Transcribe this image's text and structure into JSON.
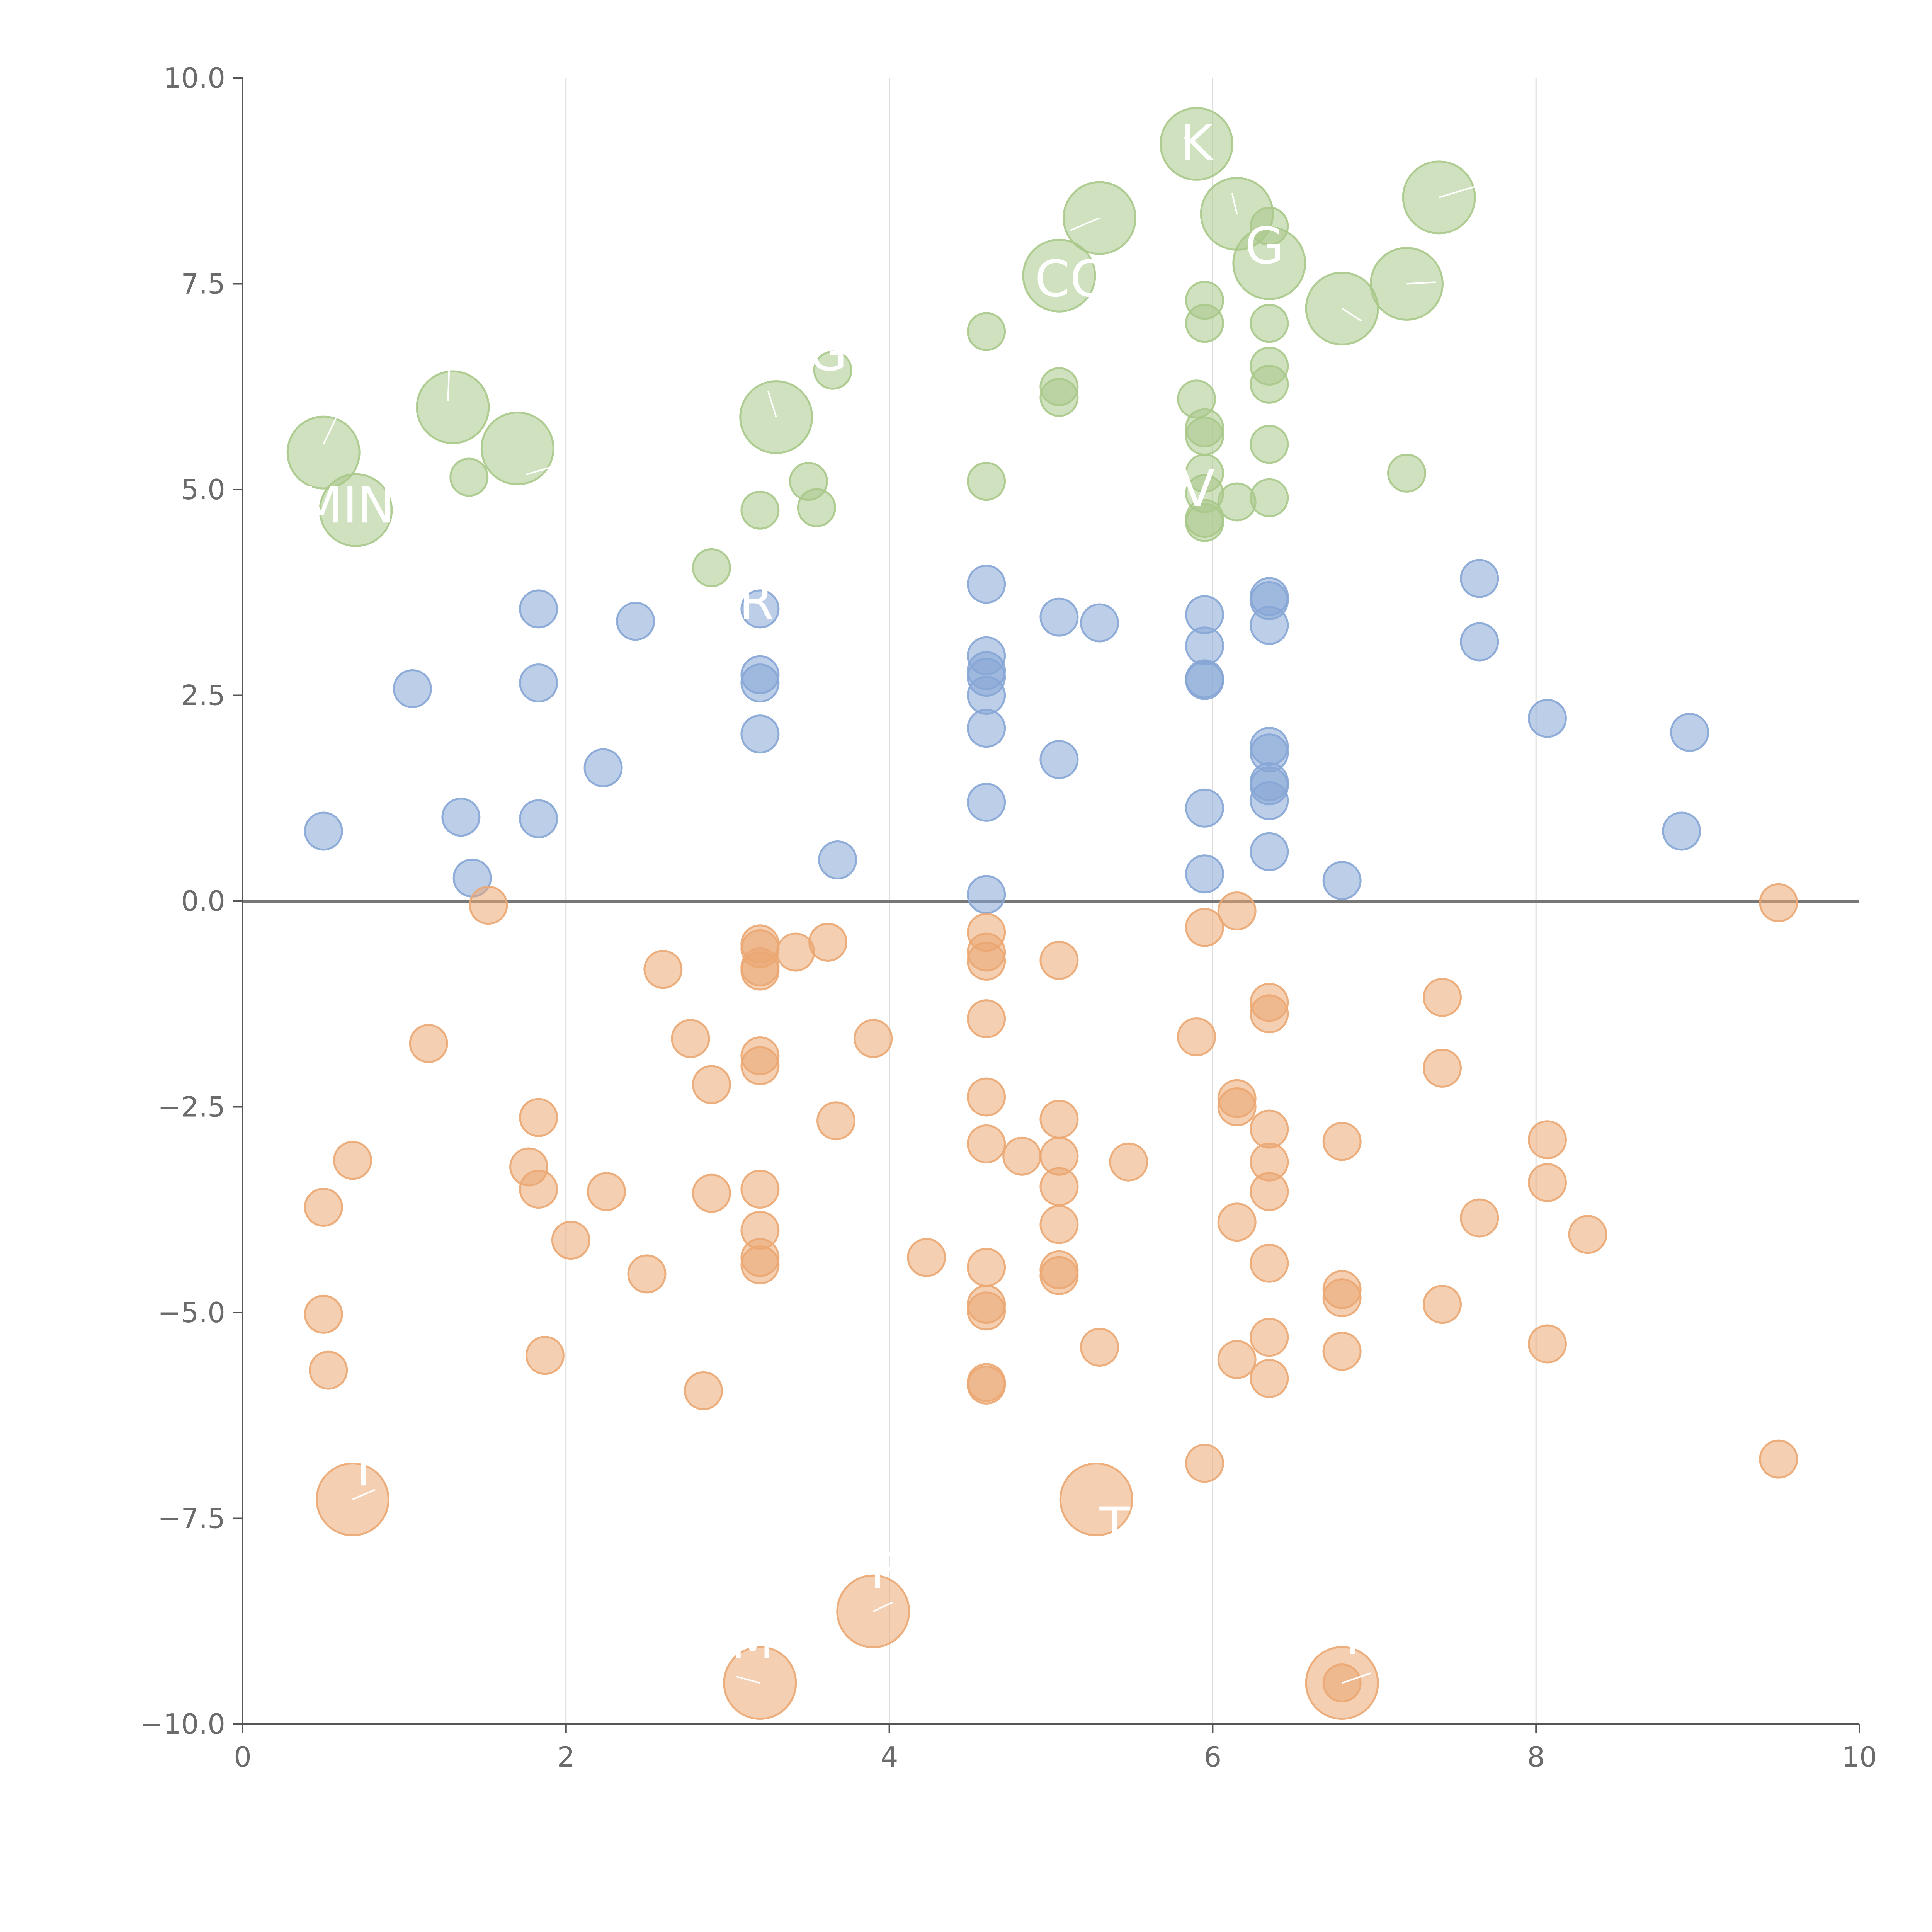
{
  "chart_data": {
    "type": "scatter",
    "title": "",
    "xlabel": "",
    "ylabel": "",
    "xlim": [
      0,
      10
    ],
    "ylim": [
      -10,
      10
    ],
    "x_ticks": [
      0,
      2,
      4,
      6,
      8,
      10
    ],
    "x_tick_labels": [
      "0",
      "2",
      "4",
      "6",
      "8",
      "10"
    ],
    "y_ticks": [
      -10,
      -7.5,
      -5,
      -2.5,
      0,
      2.5,
      5,
      7.5,
      10
    ],
    "y_tick_labels": [
      "−10.0",
      "−7.5",
      "−5.0",
      "−2.5",
      "0.0",
      "2.5",
      "5.0",
      "7.5",
      "10.0"
    ],
    "grid": "vertical",
    "zero_line": true,
    "colors": {
      "green": "#a9c98a",
      "blue": "#86a6d6",
      "orange": "#eba772",
      "axis": "#555555",
      "grid": "#dddddd",
      "zero_line": "#777777",
      "label": "#ffffff"
    },
    "series": [
      {
        "name": "green",
        "color": "#a9c98a",
        "opacity": 0.55,
        "points": [
          [
            0.5,
            5.45,
            2
          ],
          [
            0.7,
            4.75,
            2
          ],
          [
            1.3,
            6.0,
            2
          ],
          [
            1.7,
            5.5,
            2
          ],
          [
            1.4,
            5.15,
            1
          ],
          [
            3.3,
            5.88,
            2
          ],
          [
            3.65,
            6.45,
            1
          ],
          [
            3.5,
            5.1,
            1
          ],
          [
            3.2,
            4.75,
            1
          ],
          [
            3.55,
            4.78,
            1
          ],
          [
            2.9,
            4.05,
            1
          ],
          [
            4.6,
            6.92,
            1
          ],
          [
            4.6,
            5.1,
            1
          ],
          [
            5.05,
            7.6,
            2
          ],
          [
            5.3,
            8.3,
            2
          ],
          [
            5.05,
            6.25,
            1
          ],
          [
            5.05,
            6.12,
            1
          ],
          [
            5.9,
            9.2,
            2
          ],
          [
            6.15,
            8.35,
            2
          ],
          [
            6.35,
            8.2,
            1
          ],
          [
            6.35,
            7.75,
            2
          ],
          [
            6.8,
            7.2,
            2
          ],
          [
            7.2,
            7.5,
            2
          ],
          [
            7.4,
            8.55,
            2
          ],
          [
            5.95,
            7.3,
            1
          ],
          [
            5.95,
            7.02,
            1
          ],
          [
            5.9,
            6.1,
            1
          ],
          [
            5.95,
            5.75,
            1
          ],
          [
            5.95,
            5.65,
            1
          ],
          [
            5.95,
            5.2,
            1
          ],
          [
            5.95,
            4.95,
            1
          ],
          [
            5.95,
            4.65,
            1
          ],
          [
            5.95,
            4.6,
            1
          ],
          [
            6.15,
            4.85,
            1
          ],
          [
            6.35,
            7.02,
            1
          ],
          [
            6.35,
            6.5,
            1
          ],
          [
            6.35,
            6.28,
            1
          ],
          [
            6.35,
            5.55,
            1
          ],
          [
            6.35,
            4.9,
            1
          ],
          [
            7.2,
            5.2,
            1
          ]
        ]
      },
      {
        "name": "blue",
        "color": "#86a6d6",
        "opacity": 0.55,
        "points": [
          [
            0.5,
            0.85,
            1
          ],
          [
            1.05,
            2.58,
            1
          ],
          [
            1.35,
            1.02,
            1
          ],
          [
            1.42,
            0.28,
            1
          ],
          [
            1.83,
            3.55,
            1
          ],
          [
            1.83,
            2.65,
            1
          ],
          [
            1.83,
            1.0,
            1
          ],
          [
            2.23,
            1.62,
            1
          ],
          [
            2.43,
            3.4,
            1
          ],
          [
            3.2,
            3.55,
            1
          ],
          [
            3.2,
            2.75,
            1
          ],
          [
            3.2,
            2.65,
            1
          ],
          [
            3.2,
            2.03,
            1
          ],
          [
            3.68,
            0.5,
            1
          ],
          [
            4.6,
            3.85,
            1
          ],
          [
            4.6,
            2.98,
            1
          ],
          [
            4.6,
            2.8,
            1
          ],
          [
            4.6,
            2.72,
            1
          ],
          [
            4.6,
            2.5,
            1
          ],
          [
            4.6,
            2.1,
            1
          ],
          [
            4.6,
            1.2,
            1
          ],
          [
            4.6,
            0.08,
            1
          ],
          [
            5.05,
            3.45,
            1
          ],
          [
            5.05,
            1.72,
            1
          ],
          [
            5.3,
            3.38,
            1
          ],
          [
            5.95,
            3.48,
            1
          ],
          [
            5.95,
            3.1,
            1
          ],
          [
            5.95,
            2.7,
            1
          ],
          [
            5.95,
            2.68,
            1
          ],
          [
            5.95,
            1.13,
            1
          ],
          [
            5.95,
            0.33,
            1
          ],
          [
            6.35,
            3.7,
            1
          ],
          [
            6.35,
            3.65,
            1
          ],
          [
            6.35,
            3.35,
            1
          ],
          [
            6.35,
            1.88,
            1
          ],
          [
            6.35,
            1.8,
            1
          ],
          [
            6.35,
            1.45,
            1
          ],
          [
            6.35,
            1.4,
            1
          ],
          [
            6.35,
            1.22,
            1
          ],
          [
            6.35,
            0.6,
            1
          ],
          [
            6.8,
            0.25,
            1
          ],
          [
            7.65,
            3.92,
            1
          ],
          [
            7.65,
            3.15,
            1
          ],
          [
            8.07,
            2.22,
            1
          ],
          [
            8.95,
            2.05,
            1
          ],
          [
            8.9,
            0.85,
            1
          ]
        ]
      },
      {
        "name": "orange",
        "color": "#eba772",
        "opacity": 0.55,
        "points": [
          [
            1.52,
            -0.05,
            1
          ],
          [
            9.5,
            -0.02,
            1
          ],
          [
            2.6,
            -0.83,
            1
          ],
          [
            3.2,
            -0.52,
            1
          ],
          [
            3.2,
            -0.58,
            1
          ],
          [
            3.2,
            -0.8,
            1
          ],
          [
            3.2,
            -0.85,
            1
          ],
          [
            3.42,
            -0.62,
            1
          ],
          [
            3.62,
            -0.5,
            1
          ],
          [
            4.6,
            -0.38,
            1
          ],
          [
            4.6,
            -0.62,
            1
          ],
          [
            4.6,
            -0.73,
            1
          ],
          [
            5.05,
            -0.72,
            1
          ],
          [
            5.95,
            -0.32,
            1
          ],
          [
            6.15,
            -0.12,
            1
          ],
          [
            1.15,
            -1.73,
            1
          ],
          [
            2.77,
            -1.67,
            1
          ],
          [
            3.2,
            -1.88,
            1
          ],
          [
            3.2,
            -2.0,
            1
          ],
          [
            3.9,
            -1.67,
            1
          ],
          [
            4.6,
            -1.43,
            1
          ],
          [
            5.9,
            -1.65,
            1
          ],
          [
            6.35,
            -1.23,
            1
          ],
          [
            6.35,
            -1.37,
            1
          ],
          [
            7.42,
            -1.17,
            1
          ],
          [
            7.42,
            -2.03,
            1
          ],
          [
            0.68,
            -3.15,
            1
          ],
          [
            1.83,
            -2.63,
            1
          ],
          [
            1.77,
            -3.23,
            1
          ],
          [
            1.83,
            -3.5,
            1
          ],
          [
            2.9,
            -2.23,
            1
          ],
          [
            3.67,
            -2.67,
            1
          ],
          [
            4.6,
            -2.38,
            1
          ],
          [
            4.6,
            -2.95,
            1
          ],
          [
            4.82,
            -3.1,
            1
          ],
          [
            5.05,
            -2.65,
            1
          ],
          [
            5.05,
            -3.1,
            1
          ],
          [
            5.48,
            -3.17,
            1
          ],
          [
            6.15,
            -2.4,
            1
          ],
          [
            6.15,
            -2.5,
            1
          ],
          [
            6.35,
            -2.77,
            1
          ],
          [
            6.35,
            -3.17,
            1
          ],
          [
            6.8,
            -2.92,
            1
          ],
          [
            8.07,
            -2.9,
            1
          ],
          [
            0.5,
            -3.72,
            1
          ],
          [
            2.03,
            -4.12,
            1
          ],
          [
            2.25,
            -3.53,
            1
          ],
          [
            2.9,
            -3.55,
            1
          ],
          [
            3.2,
            -3.5,
            1
          ],
          [
            3.2,
            -4.0,
            1
          ],
          [
            3.2,
            -4.33,
            1
          ],
          [
            3.2,
            -4.42,
            1
          ],
          [
            4.23,
            -4.33,
            1
          ],
          [
            5.05,
            -3.47,
            1
          ],
          [
            5.05,
            -3.93,
            1
          ],
          [
            6.15,
            -3.9,
            1
          ],
          [
            6.35,
            -3.53,
            1
          ],
          [
            6.35,
            -4.4,
            1
          ],
          [
            7.65,
            -3.85,
            1
          ],
          [
            8.07,
            -3.42,
            1
          ],
          [
            8.32,
            -4.05,
            1
          ],
          [
            0.5,
            -5.02,
            1
          ],
          [
            0.53,
            -5.7,
            1
          ],
          [
            1.87,
            -5.52,
            1
          ],
          [
            2.5,
            -4.53,
            1
          ],
          [
            2.85,
            -5.95,
            1
          ],
          [
            4.6,
            -4.45,
            1
          ],
          [
            4.6,
            -4.9,
            1
          ],
          [
            4.6,
            -4.98,
            1
          ],
          [
            4.6,
            -5.85,
            1
          ],
          [
            4.6,
            -5.88,
            1
          ],
          [
            5.05,
            -4.48,
            1
          ],
          [
            5.05,
            -4.55,
            1
          ],
          [
            5.3,
            -5.42,
            1
          ],
          [
            6.15,
            -5.57,
            1
          ],
          [
            6.35,
            -5.3,
            1
          ],
          [
            6.35,
            -5.8,
            1
          ],
          [
            6.8,
            -4.72,
            1
          ],
          [
            6.8,
            -4.82,
            1
          ],
          [
            6.8,
            -5.47,
            1
          ],
          [
            7.42,
            -4.9,
            1
          ],
          [
            8.07,
            -5.38,
            1
          ],
          [
            5.95,
            -6.83,
            1
          ],
          [
            9.5,
            -6.78,
            1
          ],
          [
            0.68,
            -7.27,
            2
          ],
          [
            5.28,
            -7.27,
            2
          ],
          [
            3.9,
            -8.63,
            2
          ],
          [
            3.2,
            -9.5,
            2
          ],
          [
            6.8,
            -9.5,
            2
          ],
          [
            6.8,
            -9.5,
            1
          ]
        ]
      }
    ],
    "annotations": [
      {
        "text": "K",
        "x": 5.8,
        "y": 9.0
      },
      {
        "text": "G",
        "x": 6.2,
        "y": 7.75
      },
      {
        "text": "CO",
        "x": 4.9,
        "y": 7.35
      },
      {
        "text": "G",
        "x": 3.5,
        "y": 6.45
      },
      {
        "text": "MIN",
        "x": 0.35,
        "y": 4.6
      },
      {
        "text": "V",
        "x": 5.8,
        "y": 4.8
      },
      {
        "text": "R",
        "x": 3.07,
        "y": 3.43
      },
      {
        "text": "I",
        "x": 0.7,
        "y": -7.1
      },
      {
        "text": "T",
        "x": 5.3,
        "y": -7.8
      },
      {
        "text": "F",
        "x": 3.88,
        "y": -8.35
      },
      {
        "text": "M",
        "x": 3.02,
        "y": -9.2
      },
      {
        "text": "I",
        "x": 6.82,
        "y": -9.15
      }
    ],
    "leader_lines": [
      [
        0.58,
        5.88,
        0.5,
        5.55
      ],
      [
        1.28,
        6.6,
        1.27,
        6.08
      ],
      [
        1.75,
        5.18,
        1.92,
        5.28
      ],
      [
        3.3,
        5.88,
        3.25,
        6.2
      ],
      [
        5.3,
        8.3,
        5.12,
        8.15
      ],
      [
        5.9,
        9.2,
        5.82,
        9.28
      ],
      [
        6.15,
        8.35,
        6.12,
        8.6
      ],
      [
        6.8,
        7.2,
        6.92,
        7.05
      ],
      [
        7.2,
        7.5,
        7.38,
        7.52
      ],
      [
        7.4,
        8.55,
        7.62,
        8.68
      ],
      [
        0.68,
        -7.27,
        0.82,
        -7.15
      ],
      [
        3.9,
        -8.63,
        4.02,
        -8.52
      ],
      [
        3.2,
        -9.5,
        3.05,
        -9.42
      ],
      [
        6.8,
        -9.5,
        6.98,
        -9.38
      ]
    ]
  }
}
